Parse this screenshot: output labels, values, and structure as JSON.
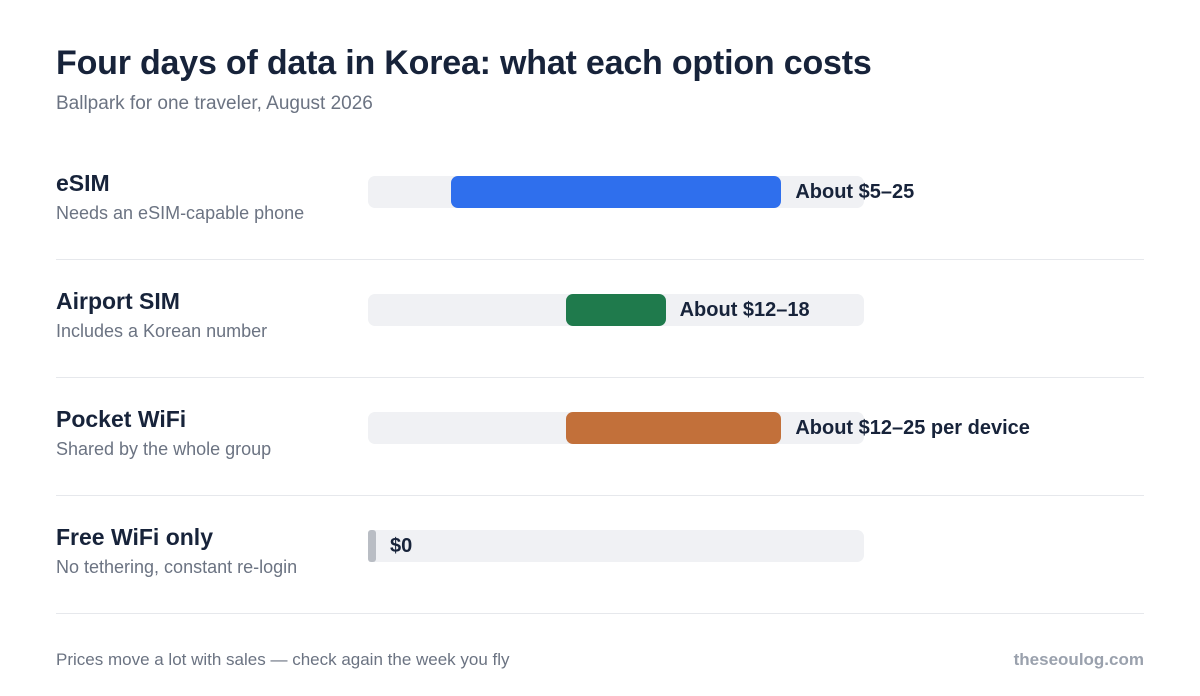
{
  "header": {
    "title": "Four days of data in Korea: what each option costs",
    "subtitle": "Ballpark for one traveler, August 2026"
  },
  "footer": {
    "note": "Prices move a lot with sales — check again the week you fly",
    "brand": "theseoulog.com"
  },
  "chart_data": {
    "type": "bar",
    "orientation": "horizontal-range",
    "title": "Four days of data in Korea: what each option costs",
    "subtitle": "Ballpark for one traveler, August 2026",
    "unit": "USD",
    "xlim": [
      0,
      30
    ],
    "grid": false,
    "legend": "none",
    "rows": [
      {
        "name": "eSIM",
        "note": "Needs an eSIM-capable phone",
        "low": 5,
        "high": 25,
        "label": "About $5–25",
        "color": "#2f6fed"
      },
      {
        "name": "Airport SIM",
        "note": "Includes a Korean number",
        "low": 12,
        "high": 18,
        "label": "About $12–18",
        "color": "#1f7a4c"
      },
      {
        "name": "Pocket WiFi",
        "note": "Shared by the whole group",
        "low": 12,
        "high": 25,
        "label": "About $12–25 per device",
        "color": "#c2703a"
      },
      {
        "name": "Free WiFi only",
        "note": "No tethering, constant re-login",
        "low": 0,
        "high": 0,
        "label": "$0",
        "color": "#b9bdc4"
      }
    ]
  }
}
